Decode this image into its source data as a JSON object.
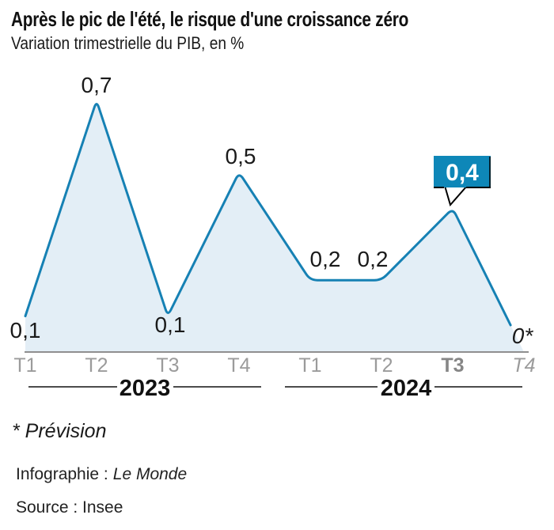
{
  "title": "Après le pic de l'été, le risque d'une croissance zéro",
  "subtitle": "Variation trimestrielle du PIB, en %",
  "chart_data": {
    "type": "area",
    "x": [
      "T1",
      "T2",
      "T3",
      "T4",
      "T1",
      "T2",
      "T3",
      "T4"
    ],
    "values": [
      0.1,
      0.7,
      0.1,
      0.5,
      0.2,
      0.2,
      0.4,
      0
    ],
    "labels": [
      "0,1",
      "0,7",
      "0,1",
      "0,5",
      "0,2",
      "0,2",
      "0,4",
      "0*"
    ],
    "groups": [
      {
        "label": "2023",
        "from": 0,
        "to": 3
      },
      {
        "label": "2024",
        "from": 4,
        "to": 7
      }
    ],
    "highlight_index": 6,
    "bold_tick_index": 6,
    "forecast_index": 7,
    "ylim": [
      0,
      0.8
    ],
    "grid": false,
    "legend": false,
    "line_color": "#1681b4",
    "fill_color": "#e3eef6",
    "highlight_box_color": "#0e87b8",
    "axis_color": "#8f8f8f",
    "tick_color": "#9b9b9b"
  },
  "footnote": "* Prévision",
  "credit": {
    "prefix": "Infographie :",
    "name": "Le Monde"
  },
  "source": {
    "text": "Source : Insee"
  }
}
